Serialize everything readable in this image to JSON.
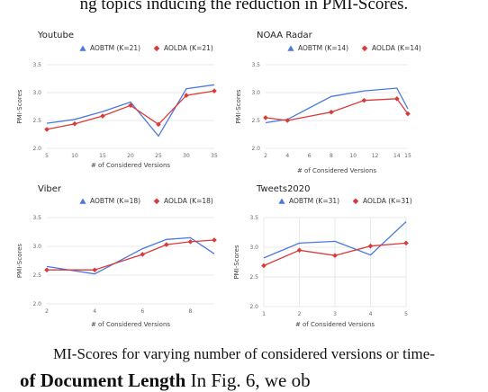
{
  "page": {
    "top_text": "ng topics inducing the reduction in PMI-Scores.",
    "caption": "MI-Scores for varying number of considered versions or time-",
    "bottom_bold": "of Document Length",
    "bottom_rest": "  In Fig. 6, we ob",
    "colors": {
      "aobtm": "#4a78e0",
      "aolda": "#d93a3a",
      "grid": "#e3e3e3"
    }
  },
  "chart_data": [
    {
      "type": "line",
      "title": "Youtube",
      "xlabel": "# of Considered Versions",
      "ylabel": "PMI-Scores",
      "x": [
        5,
        10,
        15,
        20,
        25,
        30,
        35
      ],
      "xticks": [
        "5",
        "10",
        "15",
        "20",
        "25",
        "30",
        "35"
      ],
      "ylim": [
        2.0,
        3.5
      ],
      "yticks": [
        "2.0",
        "2.5",
        "3.0",
        "3.5"
      ],
      "legend_position": "top",
      "series": [
        {
          "name": "AOBTM (K=21)",
          "values": [
            2.45,
            2.52,
            2.66,
            2.83,
            2.22,
            3.07,
            3.14
          ]
        },
        {
          "name": "AOLDA (K=21)",
          "values": [
            2.34,
            2.44,
            2.58,
            2.77,
            2.43,
            2.95,
            3.03
          ]
        }
      ]
    },
    {
      "type": "line",
      "title": "NOAA Radar",
      "xlabel": "# of Considered Versions",
      "ylabel": "PMI-Scores",
      "x": [
        2,
        4,
        8,
        11,
        14,
        15
      ],
      "xticks": [
        "2",
        "4",
        "6",
        "8",
        "10",
        "12",
        "14",
        "15"
      ],
      "ylim": [
        2.0,
        3.5
      ],
      "yticks": [
        "2.0",
        "2.5",
        "3.0",
        "3.5"
      ],
      "legend_position": "top",
      "series": [
        {
          "name": "AOBTM (K=14)",
          "values": [
            2.46,
            2.52,
            2.93,
            3.03,
            3.08,
            2.71
          ]
        },
        {
          "name": "AOLDA (K=14)",
          "values": [
            2.55,
            2.5,
            2.65,
            2.86,
            2.89,
            2.62
          ]
        }
      ]
    },
    {
      "type": "line",
      "title": "Viber",
      "xlabel": "# of Considered Versions",
      "ylabel": "PMI-Scores",
      "x": [
        2,
        4,
        6,
        7,
        8,
        9
      ],
      "xticks": [
        "2",
        "4",
        "6",
        "8"
      ],
      "ylim": [
        2.0,
        3.5
      ],
      "yticks": [
        "2.0",
        "2.5",
        "3.0",
        "3.5"
      ],
      "legend_position": "top",
      "series": [
        {
          "name": "AOBTM (K=18)",
          "values": [
            2.65,
            2.52,
            2.96,
            3.12,
            3.15,
            2.87
          ]
        },
        {
          "name": "AOLDA (K=18)",
          "values": [
            2.59,
            2.59,
            2.86,
            3.03,
            3.08,
            3.11
          ]
        }
      ]
    },
    {
      "type": "line",
      "title": "Tweets2020",
      "xlabel": "# of Considered Versions",
      "ylabel": "PMI-Scores",
      "x": [
        1,
        2,
        3,
        4,
        5
      ],
      "xticks": [
        "1",
        "2",
        "3",
        "4",
        "5"
      ],
      "ylim": [
        2.0,
        3.5
      ],
      "yticks": [
        "2.0",
        "2.5",
        "3.0",
        "3.5"
      ],
      "legend_position": "top",
      "series": [
        {
          "name": "AOBTM (K=31)",
          "values": [
            2.82,
            3.07,
            3.1,
            2.87,
            3.43
          ]
        },
        {
          "name": "AOLDA (K=31)",
          "values": [
            2.69,
            2.95,
            2.86,
            3.02,
            3.07
          ]
        }
      ]
    }
  ]
}
